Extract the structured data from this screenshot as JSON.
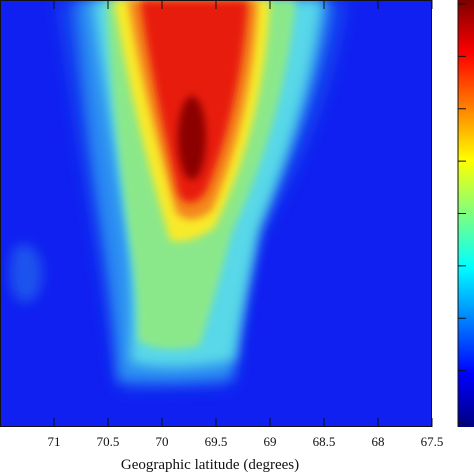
{
  "chart_data": {
    "type": "heatmap",
    "colormap": "jet",
    "colormap_stops": [
      "#00007f",
      "#0000ff",
      "#007fff",
      "#00ffff",
      "#7fff7f",
      "#ffff00",
      "#ff7f00",
      "#ff0000",
      "#7f0000"
    ],
    "background_color": "#1020f0",
    "xlabel": "Geographic latitude (degrees)",
    "x_reversed": true,
    "xlim": [
      71.5,
      67.5
    ],
    "xticks": [
      71,
      70.5,
      70,
      69.5,
      69,
      68.5,
      68,
      67.5
    ],
    "xtick_labels": [
      "71",
      "70.5",
      "70",
      "69.5",
      "69",
      "68.5",
      "68",
      "67.5"
    ],
    "colorbar": true,
    "colorbar_tick_count": 8
  }
}
